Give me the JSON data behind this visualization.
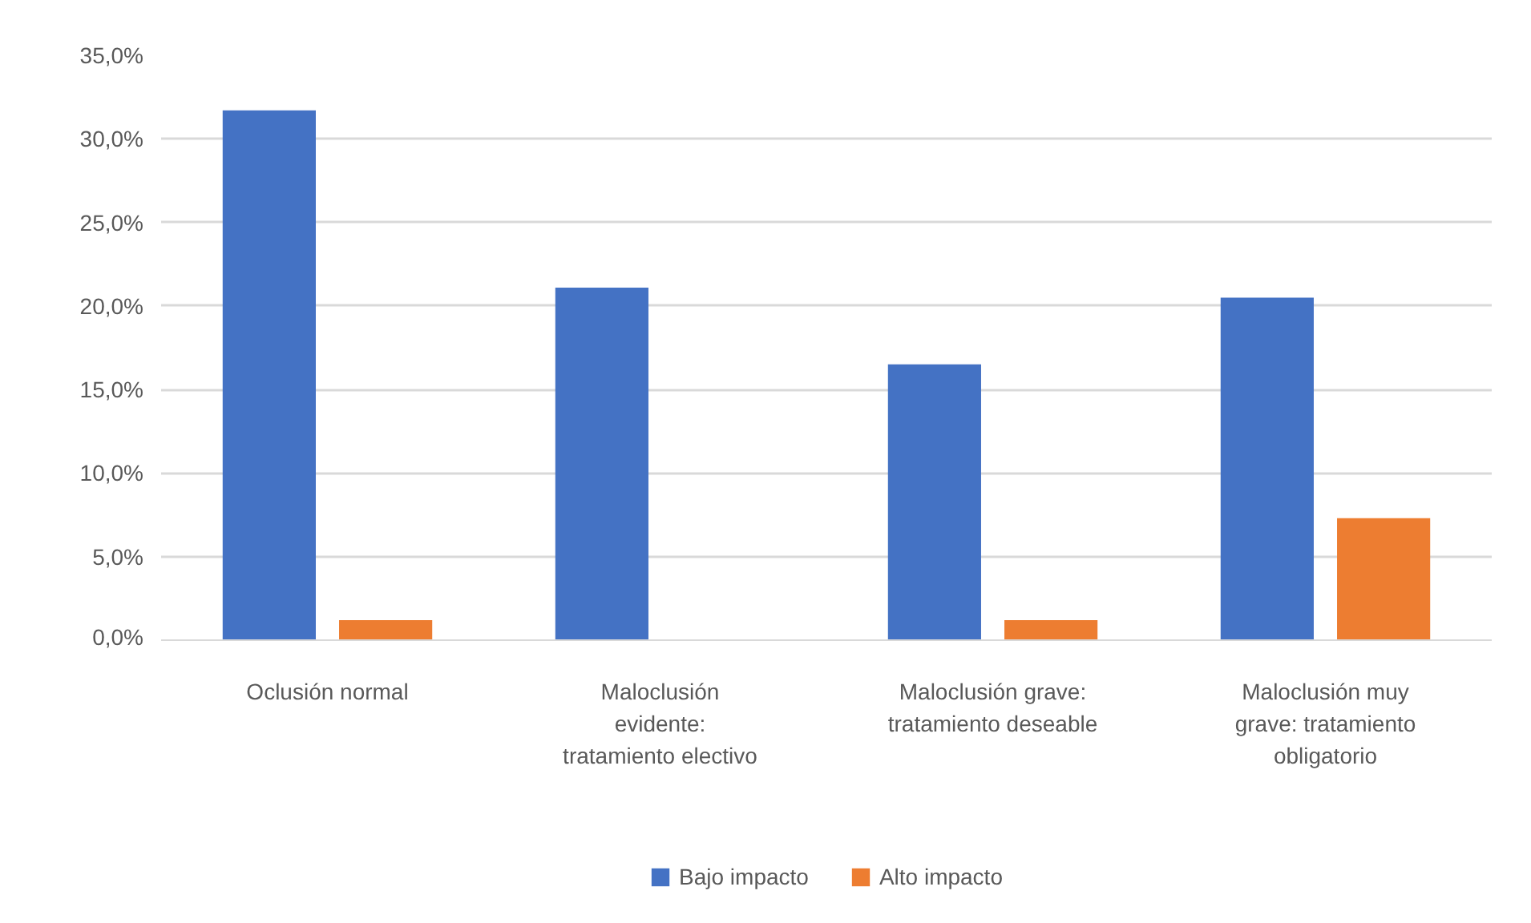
{
  "chart_data": {
    "type": "bar",
    "categories": [
      "Oclusión normal",
      "Maloclusión evidente: tratamiento electivo",
      "Maloclusión grave: tratamiento deseable",
      "Maloclusión muy grave: tratamiento obligatorio"
    ],
    "series": [
      {
        "name": "Bajo impacto",
        "color": "#4472c4",
        "values": [
          31.7,
          21.1,
          16.5,
          20.5
        ]
      },
      {
        "name": "Alto impacto",
        "color": "#ed7d31",
        "values": [
          1.2,
          0,
          1.2,
          7.3
        ]
      }
    ],
    "ylim": [
      0,
      35
    ],
    "yticks": [
      {
        "value": 0,
        "label": "0,0%"
      },
      {
        "value": 5,
        "label": "5,0%"
      },
      {
        "value": 10,
        "label": "10,0%"
      },
      {
        "value": 15,
        "label": "15,0%"
      },
      {
        "value": 20,
        "label": "20,0%"
      },
      {
        "value": 25,
        "label": "25,0%"
      },
      {
        "value": 30,
        "label": "30,0%"
      },
      {
        "value": 35,
        "label": "35,0%"
      }
    ],
    "grid": "y",
    "legend": "bottom"
  }
}
